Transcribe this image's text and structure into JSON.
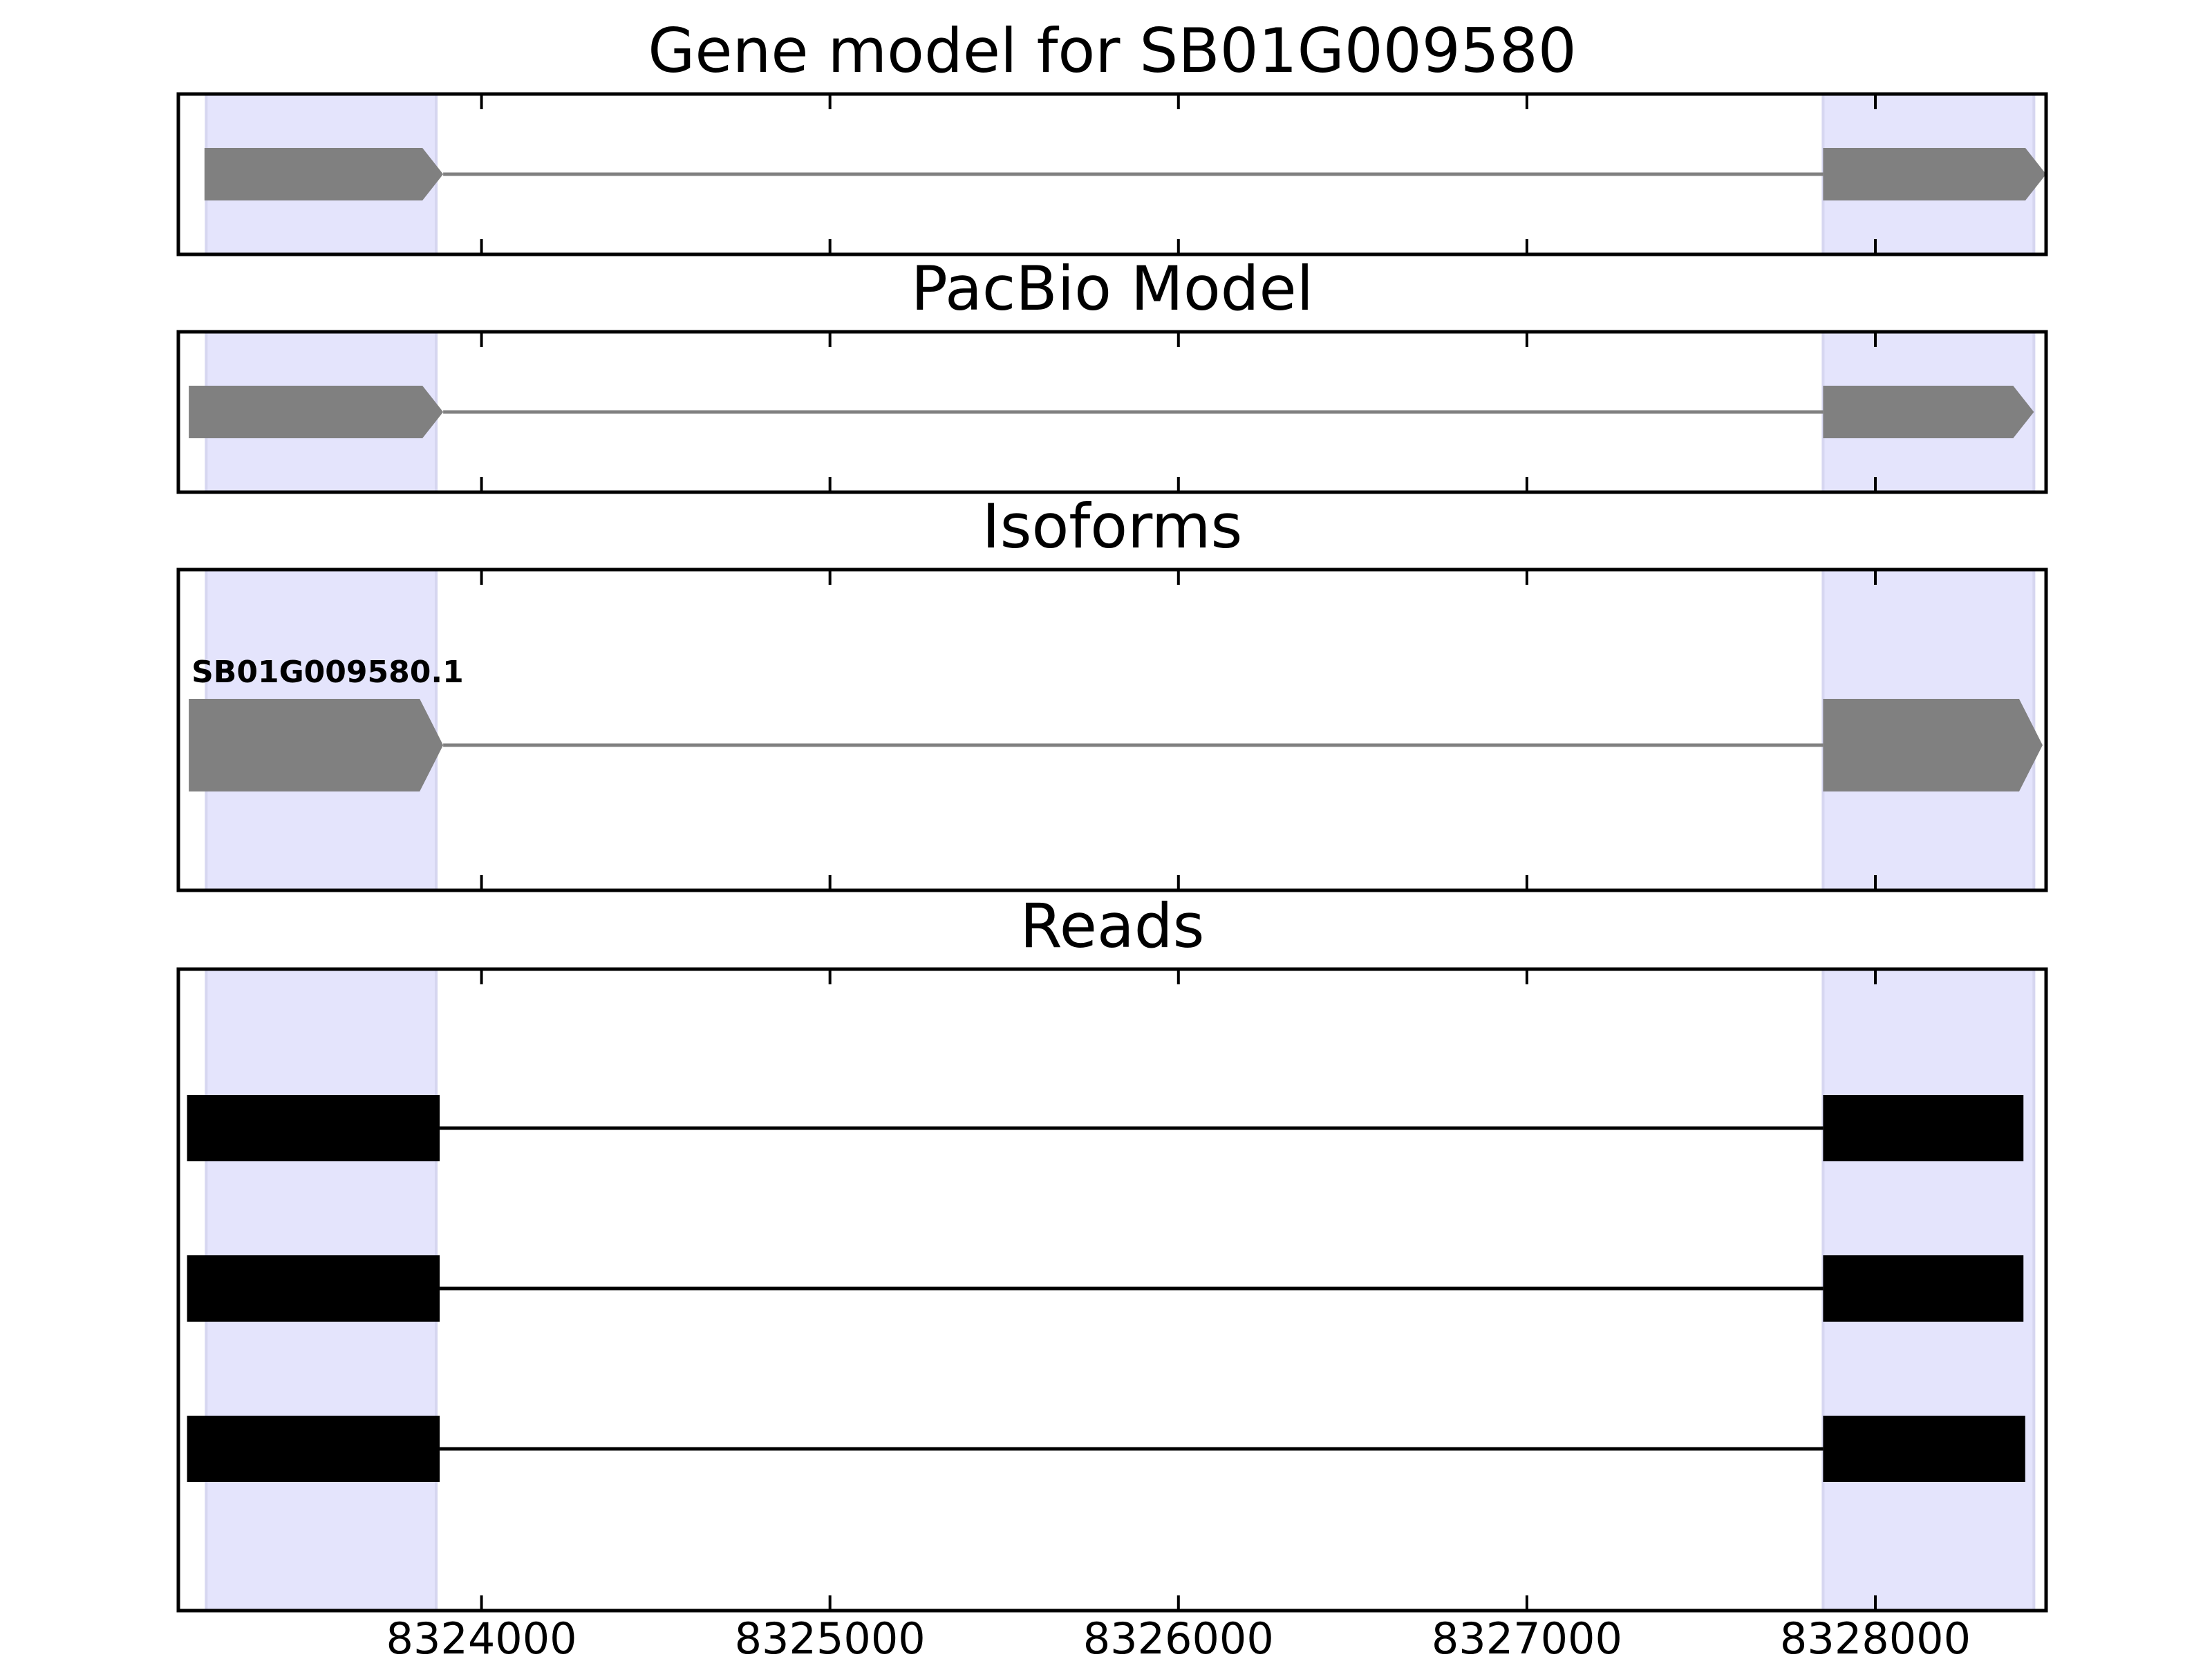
{
  "chart_data": {
    "type": "gene-track",
    "x_range": [
      8323130,
      8328490
    ],
    "x_ticks": [
      8324000,
      8325000,
      8326000,
      8327000,
      8328000
    ],
    "x_tick_labels": [
      "8324000",
      "8325000",
      "8326000",
      "8327000",
      "8328000"
    ],
    "highlight_regions": [
      {
        "start": 8323210,
        "end": 8323870
      },
      {
        "start": 8327850,
        "end": 8328455
      }
    ],
    "colors": {
      "highlight": "#e4e4fc",
      "highlight_edge": "#d6d6f0",
      "model_exon": "#808080",
      "model_intron": "#808080",
      "read": "#000000",
      "frame": "#000000"
    },
    "panels": [
      {
        "id": "gene-model",
        "title": "Gene model for SB01G009580",
        "kind": "model",
        "exons": [
          {
            "start": 8323205,
            "end": 8323890
          },
          {
            "start": 8327850,
            "end": 8328490
          }
        ],
        "strand": "+"
      },
      {
        "id": "pacbio-model",
        "title": "PacBio Model",
        "kind": "model",
        "exons": [
          {
            "start": 8323160,
            "end": 8323890
          },
          {
            "start": 8327850,
            "end": 8328455
          }
        ],
        "strand": "+"
      },
      {
        "id": "isoforms",
        "title": "Isoforms",
        "kind": "isoforms",
        "isoforms": [
          {
            "label": "SB01G009580.1",
            "exons": [
              {
                "start": 8323160,
                "end": 8323890
              },
              {
                "start": 8327850,
                "end": 8328480
              }
            ],
            "strand": "+"
          }
        ]
      },
      {
        "id": "reads",
        "title": "Reads",
        "kind": "reads",
        "reads": [
          {
            "exons": [
              {
                "start": 8323155,
                "end": 8323880
              },
              {
                "start": 8327850,
                "end": 8328425
              }
            ]
          },
          {
            "exons": [
              {
                "start": 8323155,
                "end": 8323880
              },
              {
                "start": 8327850,
                "end": 8328425
              }
            ]
          },
          {
            "exons": [
              {
                "start": 8323155,
                "end": 8323880
              },
              {
                "start": 8327850,
                "end": 8328430
              }
            ]
          }
        ]
      }
    ]
  }
}
